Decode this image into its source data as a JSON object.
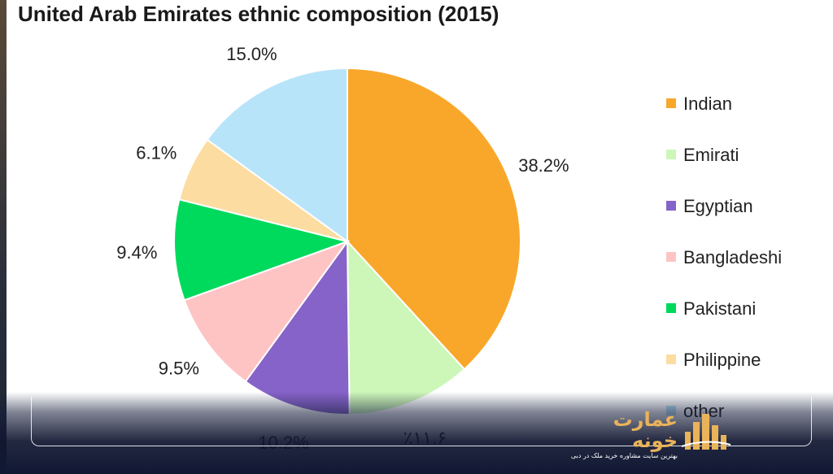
{
  "chart_data": {
    "type": "pie",
    "title": "United Arab Emirates ethnic composition (2015)",
    "slices": [
      {
        "name": "Indian",
        "value": 38.2,
        "label": "38.2%",
        "color": "#F9A72B"
      },
      {
        "name": "Emirati",
        "value": 11.6,
        "label": "٪۱۱.۶",
        "color": "#CCF7B8"
      },
      {
        "name": "Egyptian",
        "value": 10.2,
        "label": "10.2%",
        "color": "#8663C8"
      },
      {
        "name": "Bangladeshi",
        "value": 9.5,
        "label": "9.5%",
        "color": "#FEC4C4"
      },
      {
        "name": "Pakistani",
        "value": 9.4,
        "label": "9.4%",
        "color": "#00DA5C"
      },
      {
        "name": "Philippine",
        "value": 6.1,
        "label": "6.1%",
        "color": "#FCDCA0"
      },
      {
        "name": "other",
        "value": 15.0,
        "label": "15.0%",
        "color": "#B8E4FA"
      }
    ],
    "legend_position": "right"
  },
  "watermark": {
    "brand_name": "عمارت خونه",
    "tagline": "بهترین سایت مشاوره خرید ملک در دبی"
  }
}
